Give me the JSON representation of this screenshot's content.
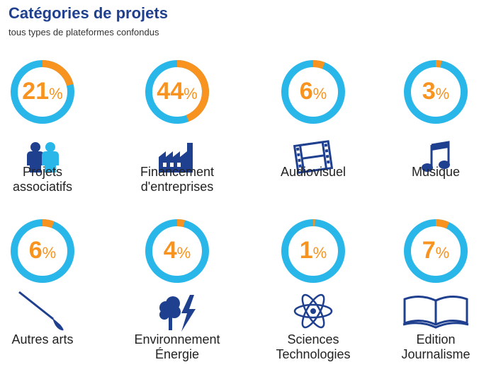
{
  "header": {
    "title": "Catégories de projets",
    "subtitle": "tous types de plateformes confondus"
  },
  "colors": {
    "accent": "#f7931e",
    "ring": "#29b6e8",
    "icon": "#1f3f8f",
    "title": "#1f3f8f"
  },
  "chart_data": {
    "type": "pie",
    "categories": [
      "Projets associatifs",
      "Financement d'entreprises",
      "Audiovisuel",
      "Musique",
      "Autres arts",
      "Environnement Énergie",
      "Sciences Technologies",
      "Edition Journalisme"
    ],
    "values": [
      21,
      44,
      6,
      3,
      6,
      4,
      1,
      7
    ],
    "unit": "%"
  },
  "items": [
    {
      "value": 21,
      "unit": "%",
      "label1": "Projets",
      "label2": "associatifs",
      "icon": "people-icon"
    },
    {
      "value": 44,
      "unit": "%",
      "label1": "Financement",
      "label2": "d'entreprises",
      "icon": "factory-icon"
    },
    {
      "value": 6,
      "unit": "%",
      "label1": "Audiovisuel",
      "label2": "",
      "icon": "film-icon"
    },
    {
      "value": 3,
      "unit": "%",
      "label1": "Musique",
      "label2": "",
      "icon": "music-note-icon"
    },
    {
      "value": 6,
      "unit": "%",
      "label1": "Autres arts",
      "label2": "",
      "icon": "paintbrush-icon"
    },
    {
      "value": 4,
      "unit": "%",
      "label1": "Environnement",
      "label2": "Énergie",
      "icon": "tree-lightning-icon"
    },
    {
      "value": 1,
      "unit": "%",
      "label1": "Sciences",
      "label2": "Technologies",
      "icon": "atom-icon"
    },
    {
      "value": 7,
      "unit": "%",
      "label1": "Edition",
      "label2": "Journalisme",
      "icon": "open-book-icon"
    }
  ]
}
